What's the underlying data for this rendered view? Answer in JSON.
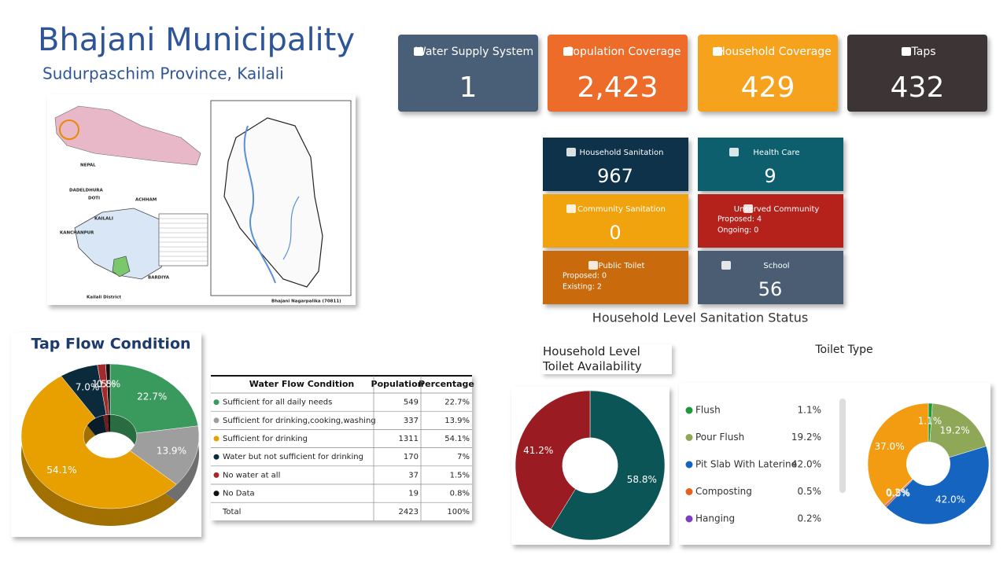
{
  "header": {
    "title": "Bhajani Municipality",
    "subtitle": "Sudurpaschim Province, Kailali"
  },
  "map": {
    "labels": [
      "NEPAL",
      "DADELDHURA",
      "DOTI",
      "ACHHAM",
      "KANCHANPUR",
      "KAILALI",
      "BARDIYA",
      "Kailali District",
      "Bhajani Nagarpalika (70811)"
    ]
  },
  "kpis": [
    {
      "label": "Water Supply System",
      "value": "1"
    },
    {
      "label": "Population Coverage",
      "value": "2,423"
    },
    {
      "label": "Household Coverage",
      "value": "429"
    },
    {
      "label": "Taps",
      "value": "432"
    }
  ],
  "sanitation": {
    "title": "Household Level Sanitation Status",
    "tiles": [
      {
        "label": "Household Sanitation",
        "value": "967"
      },
      {
        "label": "Health Care",
        "value": "9"
      },
      {
        "label": "Community Sanitation",
        "value": "0"
      },
      {
        "label": "Unserved Community",
        "lines": [
          "Proposed: 4",
          "Ongoing: 0"
        ]
      },
      {
        "label": "Public Toilet",
        "lines": [
          "Proposed: 0",
          "Existing: 2"
        ]
      },
      {
        "label": "School",
        "value": "56"
      }
    ]
  },
  "table": {
    "columns": [
      "Water Flow Condition",
      "Population",
      "Percentage"
    ],
    "rows": [
      [
        "Sufficient for all daily needs",
        "549",
        "22.7%"
      ],
      [
        "Sufficient for drinking,cooking,washing",
        "337",
        "13.9%"
      ],
      [
        "Sufficient for drinking",
        "1311",
        "54.1%"
      ],
      [
        "Water but not sufficient for drinking",
        "170",
        "7%"
      ],
      [
        "No water at all",
        "37",
        "1.5%"
      ],
      [
        "No Data",
        "19",
        "0.8%"
      ],
      [
        "Total",
        "2423",
        "100%"
      ]
    ]
  },
  "chart_data": [
    {
      "type": "pie",
      "title": "Tap Flow Condition",
      "values": [
        22.7,
        13.9,
        54.1,
        7.0,
        1.5,
        0.8
      ],
      "value_labels": [
        "22.7%",
        "13.9%",
        "54.1%",
        "7.0%",
        "1.5%",
        "0.8%"
      ],
      "colors": [
        "#3a9a5e",
        "#9e9e9e",
        "#e8a000",
        "#0b2a3c",
        "#a32a2a",
        "#111111"
      ]
    },
    {
      "type": "donut",
      "title": "Household Level Toilet Availability",
      "values": [
        58.8,
        41.2
      ],
      "value_labels": [
        "58.8%",
        "41.2%"
      ],
      "colors": [
        "#0b5557",
        "#9b1b22"
      ]
    },
    {
      "type": "donut",
      "title": "Toilet Type",
      "categories": [
        "Flush",
        "Pour Flush",
        "Pit Slab With Laterine",
        "Composting",
        "Hanging",
        null
      ],
      "values": [
        1.1,
        19.2,
        42.0,
        0.5,
        0.2,
        37.0
      ],
      "value_labels": [
        "1.1%",
        "19.2%",
        "42.0%",
        "0.5%",
        "0.2%",
        "37.0%"
      ],
      "colors": [
        "#1a9a3a",
        "#8fa858",
        "#1565c0",
        "#e8601c",
        "#7b3fbf",
        "#f39c12"
      ]
    }
  ]
}
